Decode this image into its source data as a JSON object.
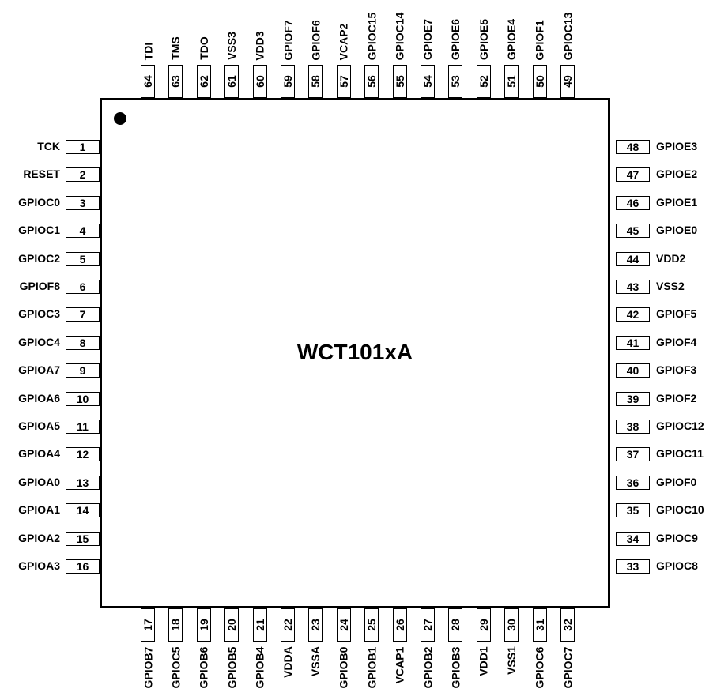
{
  "chip": {
    "name": "WCT101xA"
  },
  "pins": {
    "left": [
      {
        "num": "1",
        "label": "TCK"
      },
      {
        "num": "2",
        "label": "RESET",
        "overline": true
      },
      {
        "num": "3",
        "label": "GPIOC0"
      },
      {
        "num": "4",
        "label": "GPIOC1"
      },
      {
        "num": "5",
        "label": "GPIOC2"
      },
      {
        "num": "6",
        "label": "GPIOF8"
      },
      {
        "num": "7",
        "label": "GPIOC3"
      },
      {
        "num": "8",
        "label": "GPIOC4"
      },
      {
        "num": "9",
        "label": "GPIOA7"
      },
      {
        "num": "10",
        "label": "GPIOA6"
      },
      {
        "num": "11",
        "label": "GPIOA5"
      },
      {
        "num": "12",
        "label": "GPIOA4"
      },
      {
        "num": "13",
        "label": "GPIOA0"
      },
      {
        "num": "14",
        "label": "GPIOA1"
      },
      {
        "num": "15",
        "label": "GPIOA2"
      },
      {
        "num": "16",
        "label": "GPIOA3"
      }
    ],
    "bottom": [
      {
        "num": "17",
        "label": "GPIOB7"
      },
      {
        "num": "18",
        "label": "GPIOC5"
      },
      {
        "num": "19",
        "label": "GPIOB6"
      },
      {
        "num": "20",
        "label": "GPIOB5"
      },
      {
        "num": "21",
        "label": "GPIOB4"
      },
      {
        "num": "22",
        "label": "VDDA"
      },
      {
        "num": "23",
        "label": "VSSA"
      },
      {
        "num": "24",
        "label": "GPIOB0"
      },
      {
        "num": "25",
        "label": "GPIOB1"
      },
      {
        "num": "26",
        "label": "VCAP1"
      },
      {
        "num": "27",
        "label": "GPIOB2"
      },
      {
        "num": "28",
        "label": "GPIOB3"
      },
      {
        "num": "29",
        "label": "VDD1"
      },
      {
        "num": "30",
        "label": "VSS1"
      },
      {
        "num": "31",
        "label": "GPIOC6"
      },
      {
        "num": "32",
        "label": "GPIOC7"
      }
    ],
    "right": [
      {
        "num": "48",
        "label": "GPIOE3"
      },
      {
        "num": "47",
        "label": "GPIOE2"
      },
      {
        "num": "46",
        "label": "GPIOE1"
      },
      {
        "num": "45",
        "label": "GPIOE0"
      },
      {
        "num": "44",
        "label": "VDD2"
      },
      {
        "num": "43",
        "label": "VSS2"
      },
      {
        "num": "42",
        "label": "GPIOF5"
      },
      {
        "num": "41",
        "label": "GPIOF4"
      },
      {
        "num": "40",
        "label": "GPIOF3"
      },
      {
        "num": "39",
        "label": "GPIOF2"
      },
      {
        "num": "38",
        "label": "GPIOC12"
      },
      {
        "num": "37",
        "label": "GPIOC11"
      },
      {
        "num": "36",
        "label": "GPIOF0"
      },
      {
        "num": "35",
        "label": "GPIOC10"
      },
      {
        "num": "34",
        "label": "GPIOC9"
      },
      {
        "num": "33",
        "label": "GPIOC8"
      }
    ],
    "top": [
      {
        "num": "64",
        "label": "TDI"
      },
      {
        "num": "63",
        "label": "TMS"
      },
      {
        "num": "62",
        "label": "TDO"
      },
      {
        "num": "61",
        "label": "VSS3"
      },
      {
        "num": "60",
        "label": "VDD3"
      },
      {
        "num": "59",
        "label": "GPIOF7"
      },
      {
        "num": "58",
        "label": "GPIOF6"
      },
      {
        "num": "57",
        "label": "VCAP2"
      },
      {
        "num": "56",
        "label": "GPIOC15"
      },
      {
        "num": "55",
        "label": "GPIOC14"
      },
      {
        "num": "54",
        "label": "GPIOE7"
      },
      {
        "num": "53",
        "label": "GPIOE6"
      },
      {
        "num": "52",
        "label": "GPIOE5"
      },
      {
        "num": "51",
        "label": "GPIOE4"
      },
      {
        "num": "50",
        "label": "GPIOF1"
      },
      {
        "num": "49",
        "label": "GPIOC13"
      }
    ]
  }
}
